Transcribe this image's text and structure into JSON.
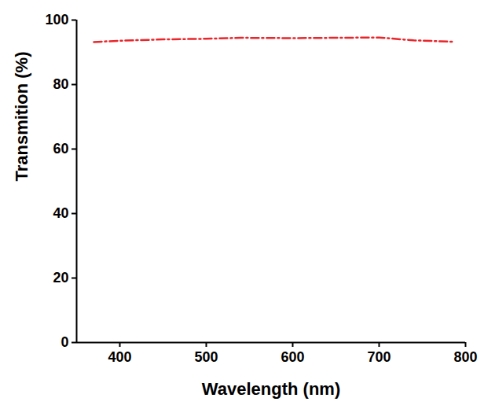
{
  "chart_data": {
    "type": "line",
    "x_label": "Wavelength (nm)",
    "y_label": "Transmition (%)",
    "x": [
      370,
      400,
      450,
      500,
      540,
      600,
      650,
      700,
      740,
      785
    ],
    "series": [
      {
        "name": null,
        "color": "#e8262b",
        "line_style": "dashdot",
        "values": [
          93.2,
          93.6,
          94.0,
          94.2,
          94.5,
          94.4,
          94.5,
          94.6,
          93.7,
          93.3
        ]
      }
    ],
    "xlim": [
      350,
      800
    ],
    "xticks": [
      400,
      500,
      600,
      700,
      800
    ],
    "ylim": [
      0,
      100
    ],
    "yticks": [
      0,
      20,
      40,
      60,
      80,
      100
    ],
    "grid": false
  }
}
